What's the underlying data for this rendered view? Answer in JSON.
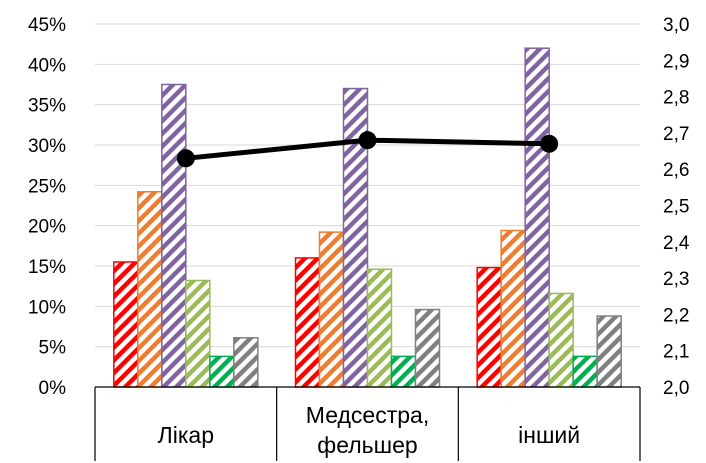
{
  "chart_data": {
    "type": "bar",
    "categories": [
      [
        "Лікар"
      ],
      [
        "Медсестра,",
        "фельшер"
      ],
      [
        "інший"
      ]
    ],
    "series": [
      {
        "values": [
          15.5,
          16.0,
          14.8
        ],
        "color": "#ff0000",
        "pattern": "diagonal-stripes"
      },
      {
        "values": [
          24.2,
          19.2,
          19.4
        ],
        "color": "#ed7d31",
        "pattern": "diagonal-stripes"
      },
      {
        "values": [
          37.5,
          37.0,
          42.0
        ],
        "color": "#8064a2",
        "pattern": "diagonal-stripes"
      },
      {
        "values": [
          13.2,
          14.6,
          11.6
        ],
        "color": "#9bbb59",
        "pattern": "diagonal-stripes"
      },
      {
        "values": [
          3.8,
          3.8,
          3.8
        ],
        "color": "#00b050",
        "pattern": "diagonal-stripes"
      },
      {
        "values": [
          6.1,
          9.6,
          8.8
        ],
        "color": "#808080",
        "pattern": "diagonal-stripes"
      }
    ],
    "line_series": {
      "type": "line",
      "axis": "right",
      "values": [
        2.63,
        2.68,
        2.67
      ],
      "color": "#000000",
      "marker": "circle"
    },
    "left_axis": {
      "ylim": [
        0,
        45
      ],
      "ticks": [
        "0%",
        "5%",
        "10%",
        "15%",
        "20%",
        "25%",
        "30%",
        "35%",
        "40%",
        "45%"
      ]
    },
    "right_axis": {
      "ylim": [
        2.0,
        3.0
      ],
      "ticks": [
        "2,0",
        "2,1",
        "2,2",
        "2,3",
        "2,4",
        "2,5",
        "2,6",
        "2,7",
        "2,8",
        "2,9",
        "3,0"
      ]
    },
    "grid": true,
    "legend": "none"
  }
}
